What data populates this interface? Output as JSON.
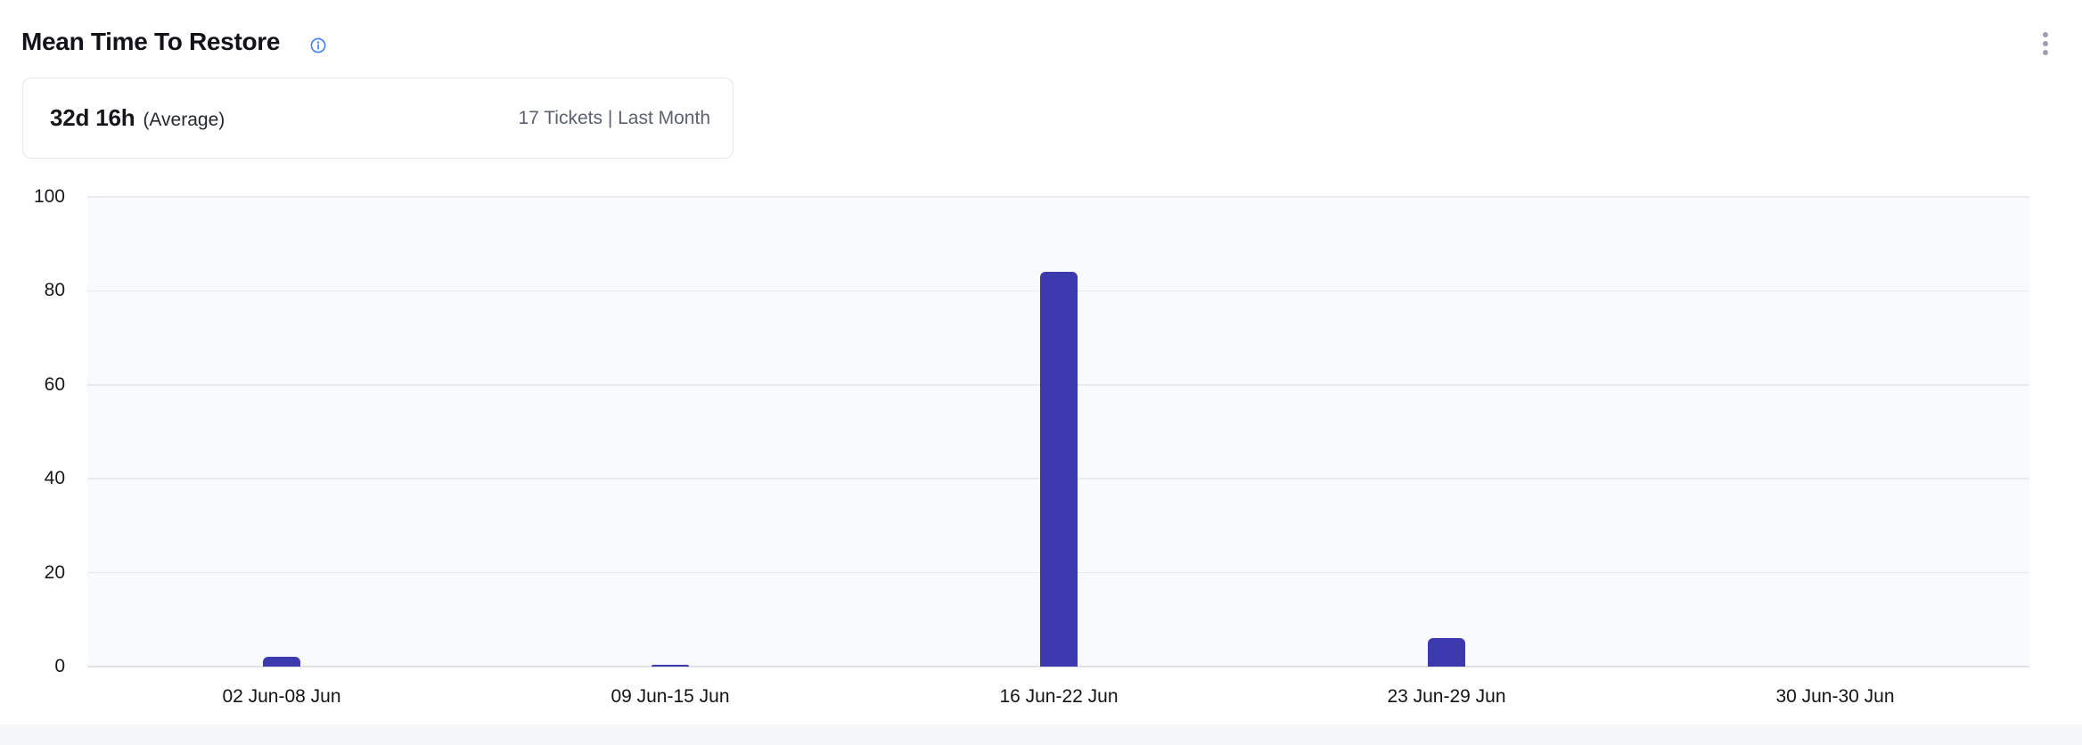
{
  "header": {
    "title": "Mean Time To Restore"
  },
  "summary": {
    "value": "32d 16h",
    "qualifier": "(Average)",
    "meta": "17 Tickets | Last Month"
  },
  "colors": {
    "bar": "#3b39ad",
    "plot_bg": "#f9fafd",
    "grid": "#e9eaee",
    "info_icon": "#3c83f6",
    "kebab_dots": "#9aa0b0",
    "meta_text": "#596173"
  },
  "chart_data": {
    "type": "bar",
    "title": "Mean Time To Restore",
    "categories": [
      "02 Jun-08 Jun",
      "09 Jun-15 Jun",
      "16 Jun-22 Jun",
      "23 Jun-29 Jun",
      "30 Jun-30 Jun"
    ],
    "values": [
      2,
      0.4,
      84,
      6,
      0
    ],
    "xlabel": "",
    "ylabel": "",
    "ylim": [
      0,
      100
    ],
    "yticks": [
      0,
      20,
      40,
      60,
      80,
      100
    ],
    "grid": true,
    "legend": false,
    "bar_color": "#3b39ad"
  }
}
